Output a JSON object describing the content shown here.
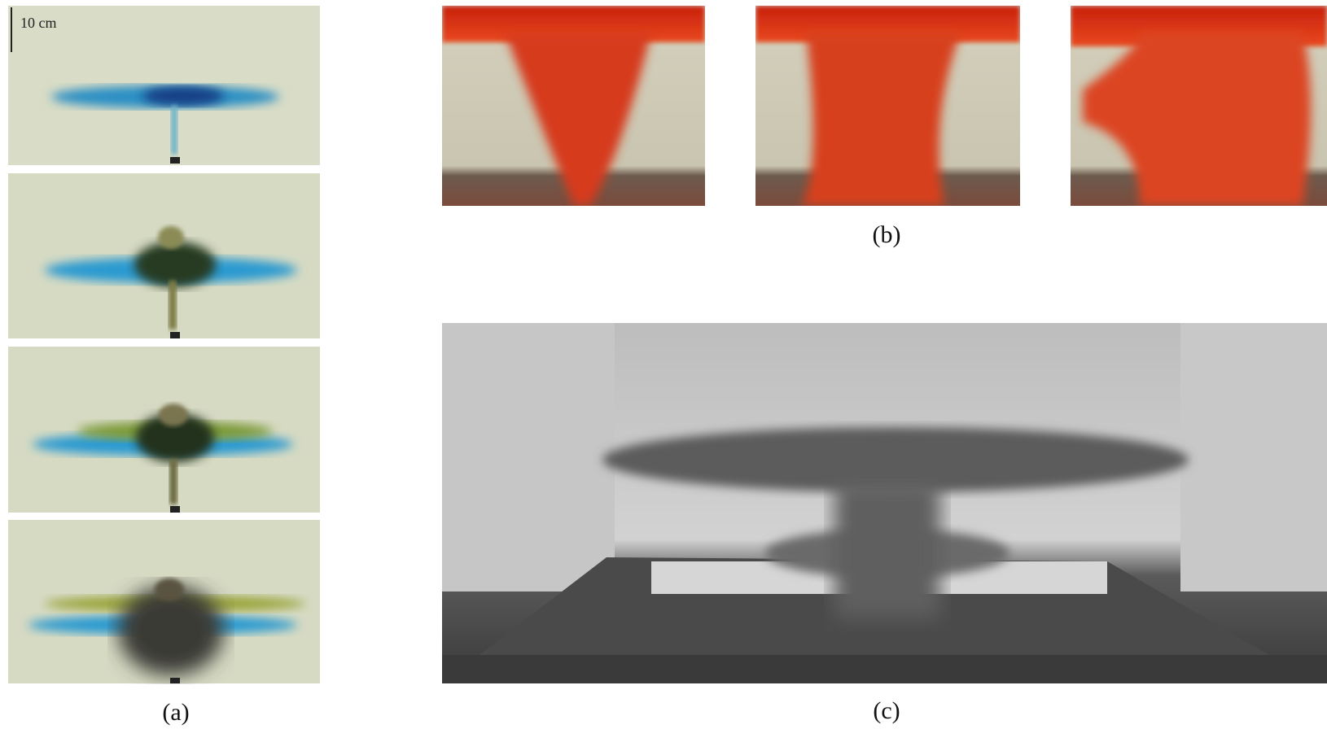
{
  "panels": {
    "a": {
      "scale_label": "10 cm",
      "caption": "(a)"
    },
    "b": {
      "caption": "(b)"
    },
    "c": {
      "caption": "(c)"
    }
  }
}
